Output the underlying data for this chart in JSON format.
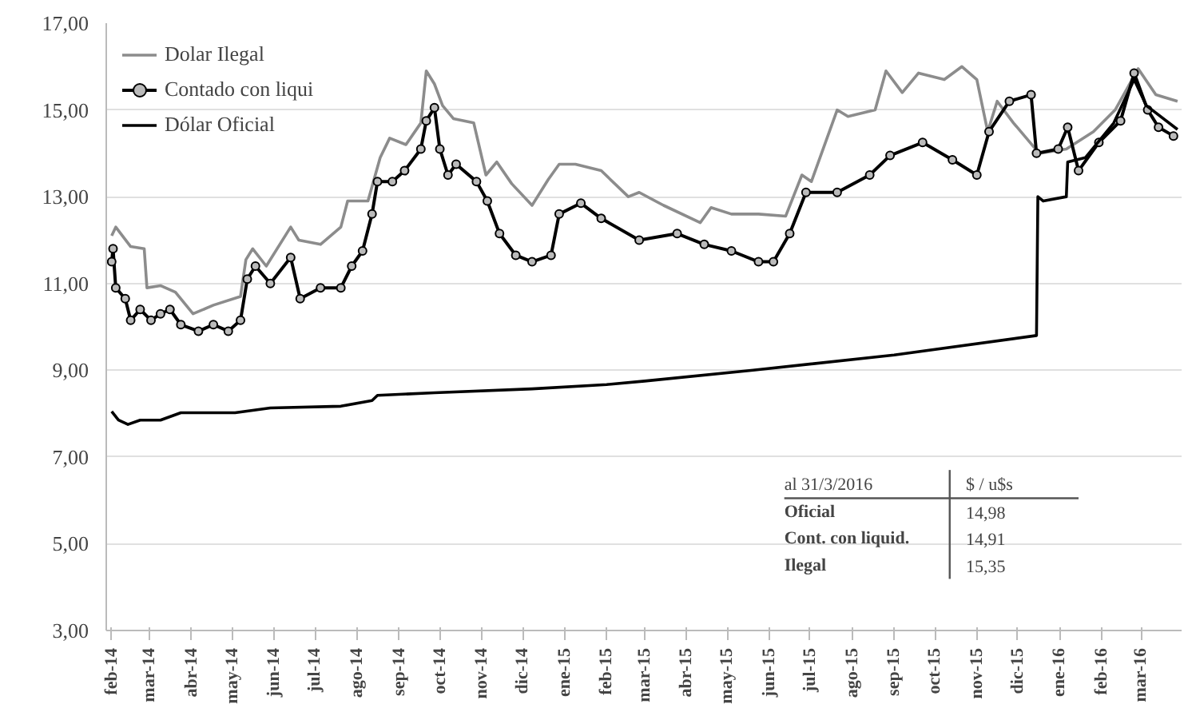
{
  "chart_data": {
    "type": "line",
    "series": [
      {
        "name": "Dolar Ilegal",
        "color": "#8c8c8c",
        "marker": "none",
        "x": [
          "2014-02-01",
          "2014-02-04",
          "2014-02-15",
          "2014-02-25",
          "2014-02-27",
          "2014-03-09",
          "2014-03-20",
          "2014-04-02",
          "2014-04-17",
          "2014-05-07",
          "2014-05-11",
          "2014-05-16",
          "2014-05-26",
          "2014-06-13",
          "2014-06-19",
          "2014-07-05",
          "2014-07-20",
          "2014-07-25",
          "2014-08-09",
          "2014-08-18",
          "2014-08-25",
          "2014-09-06",
          "2014-09-17",
          "2014-09-21",
          "2014-09-27",
          "2014-10-03",
          "2014-10-11",
          "2014-10-26",
          "2014-11-04",
          "2014-11-12",
          "2014-11-23",
          "2014-12-08",
          "2014-12-20",
          "2014-12-28",
          "2015-01-09",
          "2015-01-28",
          "2015-02-17",
          "2015-02-25",
          "2015-03-15",
          "2015-04-11",
          "2015-04-19",
          "2015-05-04",
          "2015-05-24",
          "2015-06-13",
          "2015-06-25",
          "2015-07-02",
          "2015-07-21",
          "2015-07-29",
          "2015-08-18",
          "2015-08-26",
          "2015-09-07",
          "2015-09-19",
          "2015-10-08",
          "2015-10-21",
          "2015-11-01",
          "2015-11-09",
          "2015-11-16",
          "2015-11-28",
          "2015-12-17",
          "2016-01-06",
          "2016-01-26",
          "2016-02-11",
          "2016-02-28",
          "2016-03-12",
          "2016-03-28"
        ],
        "values": [
          12.1,
          12.3,
          11.85,
          11.8,
          10.9,
          10.95,
          10.8,
          10.3,
          10.5,
          10.7,
          11.55,
          11.8,
          11.4,
          12.3,
          12.0,
          11.9,
          12.3,
          12.9,
          12.9,
          13.9,
          14.35,
          14.2,
          14.7,
          15.9,
          15.6,
          15.1,
          14.8,
          14.7,
          13.5,
          13.8,
          13.3,
          12.8,
          13.4,
          13.75,
          13.75,
          13.6,
          13.0,
          13.1,
          12.8,
          12.4,
          12.75,
          12.6,
          12.6,
          12.55,
          13.5,
          13.35,
          15.0,
          14.85,
          15.0,
          15.9,
          15.4,
          15.85,
          15.7,
          16.0,
          15.7,
          14.5,
          15.2,
          14.7,
          14.0,
          14.1,
          14.5,
          15.0,
          15.95,
          15.35,
          15.2
        ]
      },
      {
        "name": "Contado con liqui",
        "color": "#000000",
        "marker": "circle",
        "x": [
          "2014-02-01",
          "2014-02-02",
          "2014-02-04",
          "2014-02-11",
          "2014-02-15",
          "2014-02-22",
          "2014-03-02",
          "2014-03-09",
          "2014-03-16",
          "2014-03-24",
          "2014-04-06",
          "2014-04-17",
          "2014-04-28",
          "2014-05-07",
          "2014-05-12",
          "2014-05-18",
          "2014-05-29",
          "2014-06-13",
          "2014-06-20",
          "2014-07-05",
          "2014-07-20",
          "2014-07-28",
          "2014-08-05",
          "2014-08-12",
          "2014-08-16",
          "2014-08-27",
          "2014-09-05",
          "2014-09-17",
          "2014-09-21",
          "2014-09-27",
          "2014-10-01",
          "2014-10-07",
          "2014-10-13",
          "2014-10-28",
          "2014-11-05",
          "2014-11-14",
          "2014-11-26",
          "2014-12-08",
          "2014-12-22",
          "2014-12-28",
          "2015-01-13",
          "2015-01-28",
          "2015-02-25",
          "2015-03-25",
          "2015-04-14",
          "2015-05-04",
          "2015-05-24",
          "2015-06-04",
          "2015-06-16",
          "2015-06-28",
          "2015-07-21",
          "2015-08-14",
          "2015-08-29",
          "2015-09-22",
          "2015-10-14",
          "2015-11-01",
          "2015-11-10",
          "2015-11-25",
          "2015-12-11",
          "2015-12-15",
          "2015-12-31",
          "2016-01-07",
          "2016-01-15",
          "2016-01-30",
          "2016-02-15",
          "2016-02-25",
          "2016-03-06",
          "2016-03-14",
          "2016-03-25"
        ],
        "values": [
          11.5,
          11.8,
          10.9,
          10.65,
          10.15,
          10.4,
          10.15,
          10.3,
          10.4,
          10.05,
          9.9,
          10.05,
          9.9,
          10.15,
          11.1,
          11.4,
          11.0,
          11.6,
          10.65,
          10.9,
          10.9,
          11.4,
          11.75,
          12.6,
          13.35,
          13.35,
          13.6,
          14.1,
          14.75,
          15.05,
          14.1,
          13.5,
          13.75,
          13.35,
          12.9,
          12.15,
          11.65,
          11.5,
          11.65,
          12.6,
          12.85,
          12.5,
          12.0,
          12.15,
          11.9,
          11.75,
          11.5,
          11.5,
          12.15,
          13.1,
          13.1,
          13.5,
          13.95,
          14.25,
          13.85,
          13.5,
          14.5,
          15.2,
          15.35,
          14.0,
          14.1,
          14.6,
          13.6,
          14.25,
          14.75,
          15.85,
          15.0,
          14.6,
          14.4
        ]
      },
      {
        "name": "Dólar Oficial",
        "color": "#000000",
        "marker": "none",
        "x": [
          "2014-02-01",
          "2014-02-06",
          "2014-02-13",
          "2014-02-22",
          "2014-03-09",
          "2014-03-24",
          "2014-05-03",
          "2014-05-29",
          "2014-07-20",
          "2014-08-12",
          "2014-08-16",
          "2014-09-27",
          "2014-12-08",
          "2015-02-01",
          "2015-03-01",
          "2015-05-20",
          "2015-09-01",
          "2015-12-15",
          "2015-12-16",
          "2015-12-20",
          "2016-01-06",
          "2016-01-07",
          "2016-01-20",
          "2016-02-10",
          "2016-02-25",
          "2016-03-05",
          "2016-03-28"
        ],
        "values": [
          8.05,
          7.85,
          7.75,
          7.85,
          7.85,
          8.02,
          8.02,
          8.13,
          8.17,
          8.3,
          8.42,
          8.48,
          8.57,
          8.67,
          8.75,
          9.0,
          9.35,
          9.8,
          13.0,
          12.9,
          13.0,
          13.8,
          13.9,
          14.7,
          15.7,
          15.1,
          14.55
        ]
      }
    ],
    "xlim": [
      "2014-01-28",
      "2016-03-31"
    ],
    "xticks": [
      {
        "value": "2014-02-01",
        "label": "feb-14"
      },
      {
        "value": "2014-03-01",
        "label": "mar-14"
      },
      {
        "value": "2014-04-01",
        "label": "abr-14"
      },
      {
        "value": "2014-05-01",
        "label": "may-14"
      },
      {
        "value": "2014-06-01",
        "label": "jun-14"
      },
      {
        "value": "2014-07-01",
        "label": "jul-14"
      },
      {
        "value": "2014-08-01",
        "label": "ago-14"
      },
      {
        "value": "2014-09-01",
        "label": "sep-14"
      },
      {
        "value": "2014-10-01",
        "label": "oct-14"
      },
      {
        "value": "2014-11-01",
        "label": "nov-14"
      },
      {
        "value": "2014-12-01",
        "label": "dic-14"
      },
      {
        "value": "2015-01-01",
        "label": "ene-15"
      },
      {
        "value": "2015-02-01",
        "label": "feb-15"
      },
      {
        "value": "2015-03-01",
        "label": "mar-15"
      },
      {
        "value": "2015-04-01",
        "label": "abr-15"
      },
      {
        "value": "2015-05-01",
        "label": "may-15"
      },
      {
        "value": "2015-06-01",
        "label": "jun-15"
      },
      {
        "value": "2015-07-01",
        "label": "jul-15"
      },
      {
        "value": "2015-08-01",
        "label": "ago-15"
      },
      {
        "value": "2015-09-01",
        "label": "sep-15"
      },
      {
        "value": "2015-10-01",
        "label": "oct-15"
      },
      {
        "value": "2015-11-01",
        "label": "nov-15"
      },
      {
        "value": "2015-12-01",
        "label": "dic-15"
      },
      {
        "value": "2016-01-01",
        "label": "ene-16"
      },
      {
        "value": "2016-02-01",
        "label": "feb-16"
      },
      {
        "value": "2016-03-01",
        "label": "mar-16"
      }
    ],
    "ylim": [
      3,
      17
    ],
    "yticks": [
      {
        "value": 3,
        "label": "3,00"
      },
      {
        "value": 5,
        "label": "5,00"
      },
      {
        "value": 7,
        "label": "7,00"
      },
      {
        "value": 9,
        "label": "9,00"
      },
      {
        "value": 11,
        "label": "11,00"
      },
      {
        "value": 13,
        "label": "13,00"
      },
      {
        "value": 15,
        "label": "15,00"
      },
      {
        "value": 17,
        "label": "17,00"
      }
    ],
    "grid": "y",
    "legend": "top left",
    "line_style": "solid",
    "annotations": [
      "al 31/3/2016",
      "$ / u$s",
      "Oficial",
      "14,98",
      "Cont. con liquid.",
      "14,91",
      "Ilegal",
      "15,35"
    ]
  }
}
